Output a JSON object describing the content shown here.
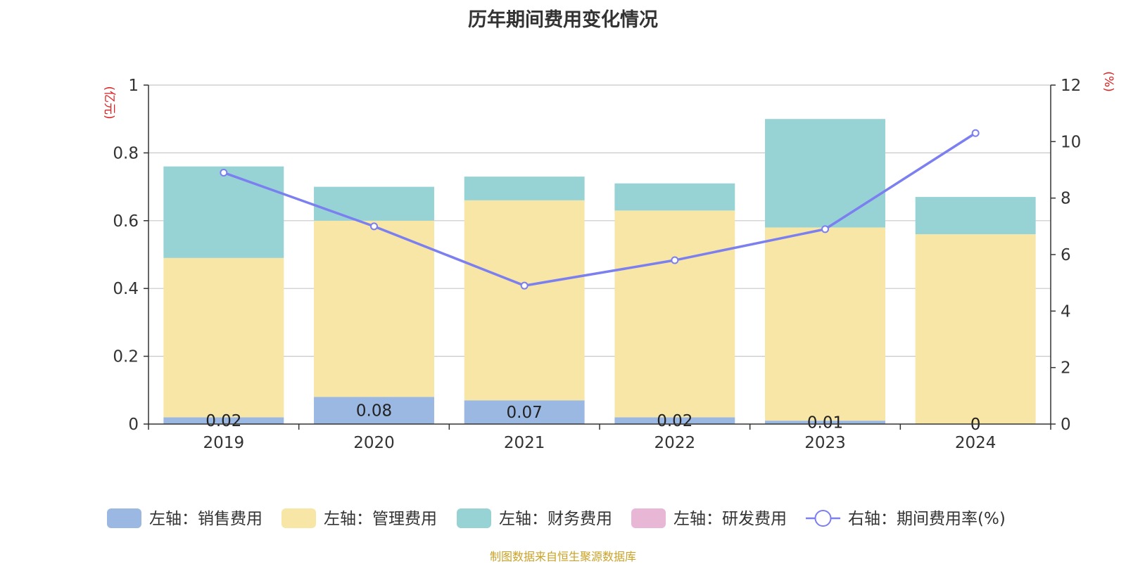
{
  "chart_data": {
    "type": "bar",
    "title": "历年期间费用变化情况",
    "source": "制图数据来自恒生聚源数据库",
    "categories": [
      "2019",
      "2020",
      "2021",
      "2022",
      "2023",
      "2024"
    ],
    "stacked": true,
    "left_axis": {
      "unit_label": "(亿元)",
      "ylim": [
        0,
        1
      ],
      "ticks": [
        "0",
        "0.2",
        "0.4",
        "0.6",
        "0.8",
        "1"
      ],
      "tick_values": [
        0,
        0.2,
        0.4,
        0.6,
        0.8,
        1
      ]
    },
    "right_axis": {
      "unit_label": "(%)",
      "ylim": [
        0,
        12
      ],
      "ticks": [
        "0",
        "2",
        "4",
        "6",
        "8",
        "10",
        "12"
      ],
      "tick_values": [
        0,
        2,
        4,
        6,
        8,
        10,
        12
      ]
    },
    "grid": true,
    "legend_position": "bottom",
    "series": [
      {
        "name": "左轴：销售费用",
        "axis": "left",
        "type": "bar",
        "color": "#9bb8e3",
        "values": [
          0.02,
          0.08,
          0.07,
          0.02,
          0.01,
          0
        ],
        "labels": [
          "0.02",
          "0.08",
          "0.07",
          "0.02",
          "0.01",
          "0"
        ]
      },
      {
        "name": "左轴：管理费用",
        "axis": "left",
        "type": "bar",
        "color": "#f7e6a6",
        "values": [
          0.47,
          0.52,
          0.59,
          0.61,
          0.57,
          0.56
        ]
      },
      {
        "name": "左轴：财务费用",
        "axis": "left",
        "type": "bar",
        "color": "#97d3d5",
        "values": [
          0.27,
          0.1,
          0.07,
          0.08,
          0.32,
          0.11
        ]
      },
      {
        "name": "左轴：研发费用",
        "axis": "left",
        "type": "bar",
        "color": "#e8b7d6",
        "values": [
          0,
          0,
          0,
          0,
          0,
          0
        ]
      },
      {
        "name": "右轴：期间费用率(%)",
        "axis": "right",
        "type": "line",
        "color": "#7b7ff0",
        "values": [
          8.9,
          7.0,
          4.9,
          5.8,
          6.9,
          10.3
        ]
      }
    ]
  }
}
